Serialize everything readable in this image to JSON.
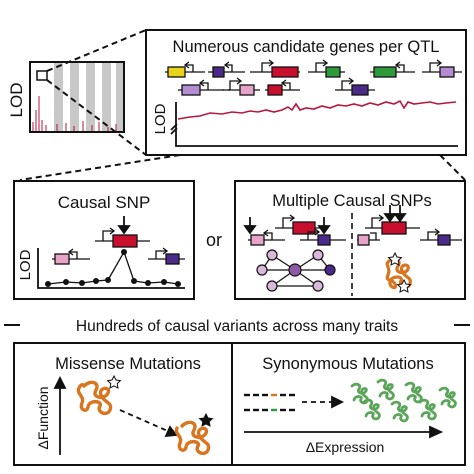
{
  "top_panel": {
    "title": "Numerous candidate genes per QTL",
    "lod_label": "LOD",
    "thumb_lod_label": "LOD"
  },
  "causal_snp_panel": {
    "title": "Causal SNP",
    "lod_label": "LOD"
  },
  "or_label": "or",
  "multiple_snps_panel": {
    "title": "Multiple Causal SNPs"
  },
  "divider_label": "Hundreds of causal variants across many traits",
  "missense_panel": {
    "title": "Missense Mutations",
    "y_axis_label": "ΔFunction"
  },
  "synonymous_panel": {
    "title": "Synonymous Mutations",
    "x_axis_label": "ΔExpression"
  },
  "colors": {
    "lod_trace": "#b5183c",
    "causal_gene": "#c8102e",
    "gene_yellow": "#e8d21a",
    "gene_purple": "#4b2a8a",
    "gene_green": "#2e9a3c",
    "gene_pink": "#e7a4c8",
    "gene_lavender": "#b48cd2",
    "gene_teal": "#2aa6b0",
    "protein_orange": "#d9741f",
    "protein_green": "#5aa55a",
    "network_node": "#d9b8dc",
    "network_node_center": "#8e5aa8"
  }
}
